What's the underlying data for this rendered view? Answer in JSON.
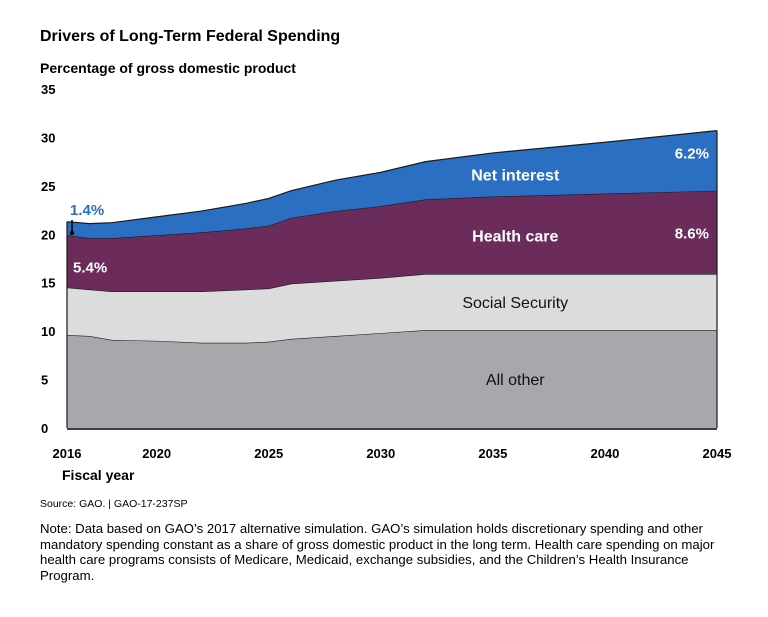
{
  "chart_data": {
    "type": "area",
    "stacked": true,
    "title": "Drivers of Long-Term Federal Spending",
    "ylabel": "Percentage of gross domestic product",
    "xlabel": "Fiscal year",
    "xlim": [
      2016,
      2045
    ],
    "ylim": [
      0,
      35
    ],
    "yticks": [
      "0",
      "5",
      "10",
      "15",
      "20",
      "25",
      "30",
      "35"
    ],
    "xticks": [
      "2016",
      "2020",
      "2025",
      "2030",
      "2035",
      "2040",
      "2045"
    ],
    "x": [
      2016,
      2017,
      2018,
      2020,
      2022,
      2024,
      2025,
      2026,
      2028,
      2030,
      2032,
      2035,
      2040,
      2045
    ],
    "series": [
      {
        "name": "All other",
        "color": "#a7a8ab",
        "values": [
          9.6,
          9.5,
          9.1,
          9.0,
          8.8,
          8.8,
          8.9,
          9.2,
          9.5,
          9.8,
          10.1,
          10.1,
          10.1,
          10.1
        ]
      },
      {
        "name": "Social Security",
        "color": "#dcdcdd",
        "values": [
          4.9,
          4.8,
          5.0,
          5.1,
          5.3,
          5.5,
          5.5,
          5.7,
          5.7,
          5.7,
          5.8,
          5.8,
          5.8,
          5.8
        ]
      },
      {
        "name": "Health care",
        "color": "#6b2c5c",
        "values": [
          5.4,
          5.3,
          5.5,
          5.8,
          6.1,
          6.3,
          6.5,
          6.8,
          7.2,
          7.4,
          7.7,
          8.0,
          8.3,
          8.6
        ]
      },
      {
        "name": "Net interest",
        "color": "#2a6fc1",
        "values": [
          1.4,
          1.5,
          1.6,
          1.9,
          2.2,
          2.6,
          2.8,
          2.8,
          3.2,
          3.5,
          3.9,
          4.5,
          5.3,
          6.2
        ]
      }
    ],
    "annotations": [
      {
        "label": "1.4%",
        "series": "Net interest",
        "position": "start"
      },
      {
        "label": "5.4%",
        "series": "Health care",
        "position": "start"
      },
      {
        "label": "6.2%",
        "series": "Net interest",
        "position": "end"
      },
      {
        "label": "8.6%",
        "series": "Health care",
        "position": "end"
      }
    ]
  },
  "source": "Source: GAO.  |  GAO-17-237SP",
  "note": "Note: Data based on GAO’s 2017 alternative simulation. GAO’s simulation holds discretionary spending and other mandatory spending constant as a share of gross domestic product in the long term. Health care spending on major health care programs consists of Medicare, Medicaid, exchange subsidies, and the Children’s Health Insurance Program."
}
